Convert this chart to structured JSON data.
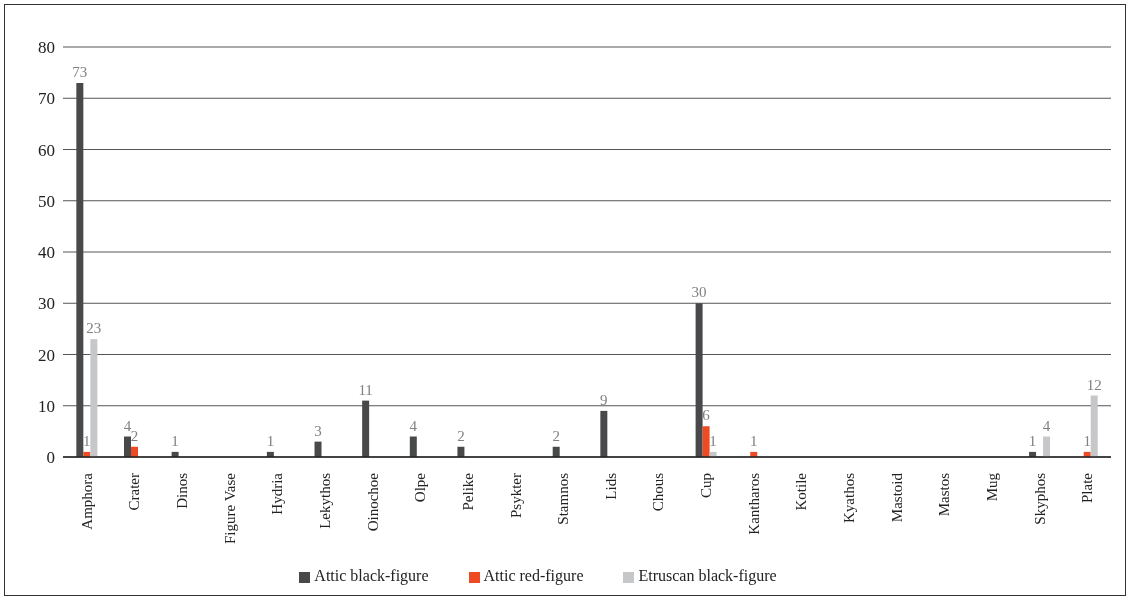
{
  "chart_data": {
    "type": "bar",
    "categories": [
      "Amphora",
      "Crater",
      "Dinos",
      "Figure Vase",
      "Hydria",
      "Lekythos",
      "Oinochoe",
      "Olpe",
      "Pelike",
      "Psykter",
      "Stamnos",
      "Lids",
      "Chous",
      "Cup",
      "Kantharos",
      "Kotile",
      "Kyathos",
      "Mastoid",
      "Mastos",
      "Mug",
      "Skyphos",
      "Plate"
    ],
    "series": [
      {
        "name": "Attic black-figure",
        "color": "#48494b",
        "values": [
          73,
          4,
          1,
          null,
          1,
          3,
          11,
          4,
          2,
          null,
          2,
          9,
          null,
          30,
          null,
          null,
          null,
          null,
          null,
          null,
          1,
          null
        ]
      },
      {
        "name": "Attic red-figure",
        "color": "#ee4b25",
        "values": [
          1,
          2,
          null,
          null,
          null,
          null,
          null,
          null,
          null,
          null,
          null,
          null,
          null,
          6,
          1,
          null,
          null,
          null,
          null,
          null,
          null,
          1
        ]
      },
      {
        "name": "Etruscan black-figure",
        "color": "#c6c7c9",
        "values": [
          23,
          null,
          null,
          null,
          null,
          null,
          null,
          null,
          null,
          null,
          null,
          null,
          null,
          1,
          null,
          null,
          null,
          null,
          null,
          null,
          4,
          12
        ]
      }
    ],
    "ylim": [
      0,
      80
    ],
    "yticks": [
      0,
      10,
      20,
      30,
      40,
      50,
      60,
      70,
      80
    ],
    "grid": "y",
    "legend": "bottom",
    "data_labels": true
  }
}
